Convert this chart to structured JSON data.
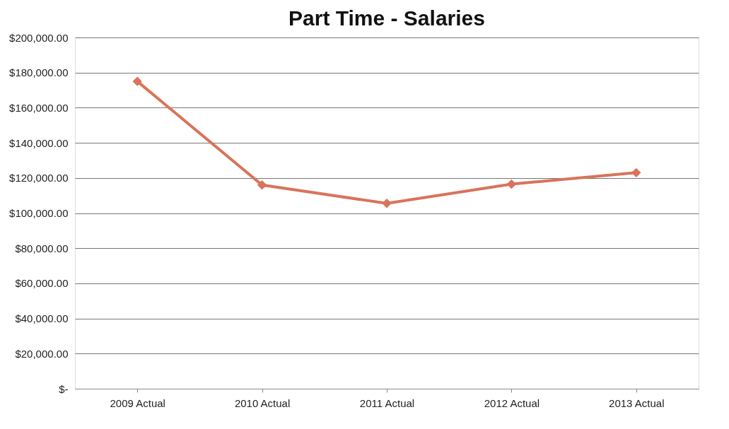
{
  "chart_data": {
    "type": "line",
    "title": "Part Time - Salaries",
    "categories": [
      "2009 Actual",
      "2010 Actual",
      "2011 Actual",
      "2012 Actual",
      "2013 Actual"
    ],
    "series": [
      {
        "color": "#d9735a",
        "values": [
          175000,
          116000,
          105500,
          116500,
          123000
        ]
      }
    ],
    "ylim": [
      0,
      200000
    ],
    "yticks": [
      {
        "value": 0,
        "label": "$-"
      },
      {
        "value": 20000,
        "label": "$20,000.00"
      },
      {
        "value": 40000,
        "label": "$40,000.00"
      },
      {
        "value": 60000,
        "label": "$60,000.00"
      },
      {
        "value": 80000,
        "label": "$80,000.00"
      },
      {
        "value": 100000,
        "label": "$100,000.00"
      },
      {
        "value": 120000,
        "label": "$120,000.00"
      },
      {
        "value": 140000,
        "label": "$140,000.00"
      },
      {
        "value": 160000,
        "label": "$160,000.00"
      },
      {
        "value": 180000,
        "label": "$180,000.00"
      },
      {
        "value": 200000,
        "label": "$200,000.00"
      }
    ],
    "grid": "y",
    "marker": "diamond",
    "line_style": "solid"
  }
}
